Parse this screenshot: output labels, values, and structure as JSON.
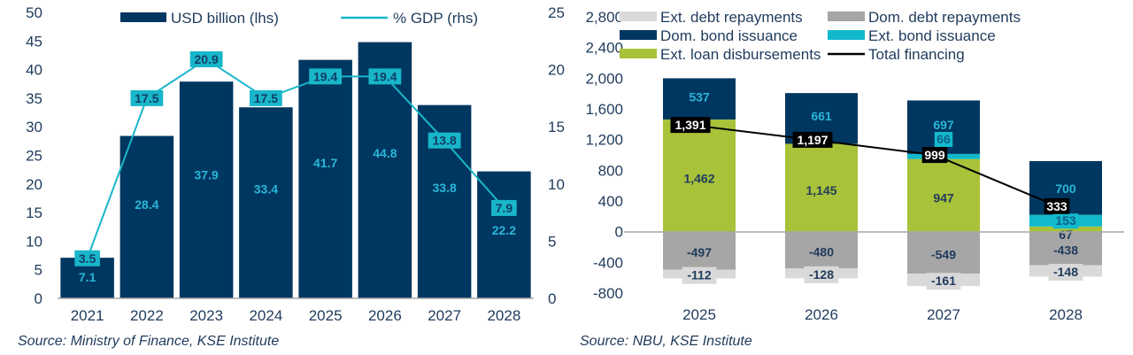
{
  "chart_data": [
    {
      "type": "bar",
      "title": "",
      "categories": [
        "2021",
        "2022",
        "2023",
        "2024",
        "2025",
        "2026",
        "2027",
        "2028"
      ],
      "series": [
        {
          "name": "USD billion (lhs)",
          "kind": "bar",
          "axis": "left",
          "color": "#003760",
          "values": [
            7.1,
            28.4,
            37.9,
            33.4,
            41.7,
            44.8,
            33.8,
            22.2
          ],
          "labels": [
            "7.1",
            "28.4",
            "37.9",
            "33.4",
            "41.7",
            "44.8",
            "33.8",
            "22.2"
          ]
        },
        {
          "name": "% GDP (rhs)",
          "kind": "line",
          "axis": "right",
          "color": "#19b6c9",
          "values": [
            3.5,
            17.5,
            20.9,
            17.5,
            19.4,
            19.4,
            13.8,
            7.9
          ],
          "labels": [
            "3.5",
            "17.5",
            "20.9",
            "17.5",
            "19.4",
            "19.4",
            "13.8",
            "7.9"
          ]
        }
      ],
      "ylim_left": [
        0,
        50
      ],
      "yticks_left": [
        "0",
        "5",
        "10",
        "15",
        "20",
        "25",
        "30",
        "35",
        "40",
        "45",
        "50"
      ],
      "ylim_right": [
        0,
        25
      ],
      "yticks_right": [
        "0",
        "5",
        "10",
        "15",
        "20",
        "25"
      ],
      "legend": {
        "placement": "top",
        "entries": [
          "USD billion (lhs)",
          "% GDP (rhs)"
        ]
      },
      "grid": false,
      "source": "Source: Ministry of Finance, KSE Institute"
    },
    {
      "type": "bar",
      "stacked": true,
      "title": "",
      "categories": [
        "2025",
        "2026",
        "2027",
        "2028"
      ],
      "series": [
        {
          "name": "Ext. loan disbursements",
          "kind": "bar",
          "color": "#a8c23a",
          "label_color": "#1f3b5c",
          "values": [
            1462,
            1145,
            947,
            67
          ],
          "labels": [
            "1,462",
            "1,145",
            "947",
            "67"
          ]
        },
        {
          "name": "Ext. bond issuance",
          "kind": "bar",
          "color": "#12b9cc",
          "label_color": "#0f5f8a",
          "values": [
            0,
            0,
            66,
            153
          ],
          "labels": [
            "",
            "",
            "66",
            "153"
          ]
        },
        {
          "name": "Dom. bond issuance",
          "kind": "bar",
          "color": "#003760",
          "label_color": "#2ab6d8",
          "values": [
            537,
            661,
            697,
            700
          ],
          "labels": [
            "537",
            "661",
            "697",
            "700"
          ]
        },
        {
          "name": "Dom. debt repayments",
          "kind": "bar",
          "color": "#a6a6a6",
          "label_color": "#1f3b5c",
          "values": [
            -497,
            -480,
            -549,
            -438
          ],
          "labels": [
            "-497",
            "-480",
            "-549",
            "-438"
          ]
        },
        {
          "name": "Ext. debt repayments",
          "kind": "bar",
          "color": "#d9d9d9",
          "label_color": "#1f3b5c",
          "values": [
            -112,
            -128,
            -161,
            -148
          ],
          "labels": [
            "-112",
            "-128",
            "-161",
            "-148"
          ]
        },
        {
          "name": "Total financing",
          "kind": "line",
          "color": "#000000",
          "values": [
            1391,
            1197,
            999,
            333
          ],
          "labels": [
            "1,391",
            "1,197",
            "999",
            "333"
          ]
        }
      ],
      "ylim": [
        -800,
        2800
      ],
      "yticks": [
        "-800",
        "-400",
        "0",
        "400",
        "800",
        "1,200",
        "1,600",
        "2,000",
        "2,400",
        "2,800"
      ],
      "ytick_values": [
        -800,
        -400,
        0,
        400,
        800,
        1200,
        1600,
        2000,
        2400,
        2800
      ],
      "legend": {
        "placement": "top",
        "entries": [
          "Ext. debt repayments",
          "Dom. debt repayments",
          "Dom. bond issuance",
          "Ext. bond issuance",
          "Ext. loan disbursements",
          "Total financing"
        ]
      },
      "grid": false,
      "source": "Source: NBU, KSE Institute"
    }
  ]
}
